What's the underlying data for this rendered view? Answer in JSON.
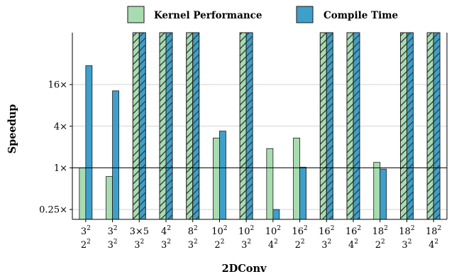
{
  "chart_data": {
    "type": "bar",
    "xlabel": "2DConv",
    "ylabel": "Speedup",
    "y_scale": "log2",
    "ylim": [
      0.18,
      90
    ],
    "yticks": [
      {
        "value": 0.25,
        "label": "0.25×"
      },
      {
        "value": 1,
        "label": "1×"
      },
      {
        "value": 4,
        "label": "4×"
      },
      {
        "value": 16,
        "label": "16×"
      }
    ],
    "reference_line": 1,
    "grid": "horizontal",
    "legend_position": "top",
    "categories": [
      {
        "top_base": "3",
        "top_exp": "2",
        "bottom_base": "2",
        "bottom_exp": "2"
      },
      {
        "top_base": "3",
        "top_exp": "2",
        "bottom_base": "3",
        "bottom_exp": "2"
      },
      {
        "top_base": "3×5",
        "top_exp": "",
        "bottom_base": "3",
        "bottom_exp": "2"
      },
      {
        "top_base": "4",
        "top_exp": "2",
        "bottom_base": "3",
        "bottom_exp": "2"
      },
      {
        "top_base": "8",
        "top_exp": "2",
        "bottom_base": "3",
        "bottom_exp": "2"
      },
      {
        "top_base": "10",
        "top_exp": "2",
        "bottom_base": "2",
        "bottom_exp": "2"
      },
      {
        "top_base": "10",
        "top_exp": "2",
        "bottom_base": "3",
        "bottom_exp": "2"
      },
      {
        "top_base": "10",
        "top_exp": "2",
        "bottom_base": "4",
        "bottom_exp": "2"
      },
      {
        "top_base": "16",
        "top_exp": "2",
        "bottom_base": "2",
        "bottom_exp": "2"
      },
      {
        "top_base": "16",
        "top_exp": "2",
        "bottom_base": "3",
        "bottom_exp": "2"
      },
      {
        "top_base": "16",
        "top_exp": "2",
        "bottom_base": "4",
        "bottom_exp": "2"
      },
      {
        "top_base": "18",
        "top_exp": "2",
        "bottom_base": "2",
        "bottom_exp": "2"
      },
      {
        "top_base": "18",
        "top_exp": "2",
        "bottom_base": "3",
        "bottom_exp": "2"
      },
      {
        "top_base": "18",
        "top_exp": "2",
        "bottom_base": "4",
        "bottom_exp": "2"
      }
    ],
    "series": [
      {
        "name": "Kernel Performance",
        "color": "#a8dcb0",
        "values": [
          1.0,
          0.75,
          null,
          null,
          null,
          2.7,
          null,
          1.9,
          2.7,
          null,
          null,
          1.2,
          null,
          null
        ],
        "exceeds_axis": [
          false,
          false,
          true,
          true,
          true,
          false,
          true,
          false,
          false,
          true,
          true,
          false,
          true,
          true
        ]
      },
      {
        "name": "Compile Time",
        "color": "#3e9fcb",
        "values": [
          30,
          13,
          null,
          null,
          null,
          3.4,
          null,
          0.25,
          1.02,
          null,
          null,
          0.96,
          null,
          null
        ],
        "exceeds_axis": [
          false,
          false,
          true,
          true,
          true,
          false,
          true,
          false,
          false,
          true,
          true,
          false,
          true,
          true
        ]
      }
    ],
    "hatch_color": "#3a4a45"
  }
}
